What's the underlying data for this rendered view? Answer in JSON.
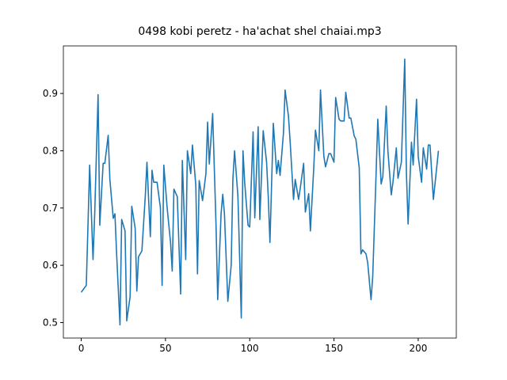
{
  "chart_data": {
    "type": "line",
    "title": "0498 kobi peretz - ha'achat shel chaiai.mp3",
    "color": "#1f77b4",
    "x": [
      0,
      3,
      5,
      7,
      8,
      10,
      11,
      13,
      14,
      16,
      17,
      19,
      20,
      21,
      23,
      24,
      26,
      27,
      29,
      30,
      32,
      33,
      34,
      36,
      38,
      39,
      41,
      42,
      43,
      45,
      47,
      48,
      49,
      51,
      53,
      54,
      55,
      57,
      59,
      60,
      62,
      63,
      65,
      66,
      68,
      69,
      70,
      72,
      74,
      75,
      76,
      78,
      80,
      81,
      83,
      84,
      85,
      87,
      89,
      90,
      91,
      93,
      95,
      96,
      97,
      99,
      100,
      102,
      103,
      105,
      106,
      108,
      110,
      111,
      112,
      114,
      116,
      117,
      118,
      120,
      121,
      123,
      124,
      126,
      127,
      129,
      130,
      132,
      133,
      135,
      136,
      138,
      139,
      141,
      142,
      144,
      145,
      147,
      148,
      150,
      151,
      153,
      154,
      156,
      157,
      159,
      160,
      162,
      163,
      165,
      166,
      167,
      169,
      170,
      172,
      173,
      175,
      176,
      178,
      179,
      181,
      182,
      184,
      185,
      187,
      188,
      190,
      192,
      193,
      194,
      196,
      197,
      199,
      200,
      202,
      203,
      205,
      206,
      207,
      209,
      212
    ],
    "values": [
      0.553,
      0.565,
      0.775,
      0.61,
      0.69,
      0.898,
      0.67,
      0.778,
      0.778,
      0.827,
      0.75,
      0.682,
      0.69,
      0.62,
      0.496,
      0.68,
      0.66,
      0.503,
      0.545,
      0.703,
      0.665,
      0.555,
      0.615,
      0.625,
      0.72,
      0.78,
      0.65,
      0.766,
      0.745,
      0.745,
      0.7,
      0.565,
      0.775,
      0.7,
      0.64,
      0.59,
      0.733,
      0.72,
      0.55,
      0.783,
      0.61,
      0.8,
      0.76,
      0.81,
      0.74,
      0.585,
      0.748,
      0.713,
      0.76,
      0.85,
      0.777,
      0.865,
      0.67,
      0.54,
      0.69,
      0.724,
      0.69,
      0.537,
      0.6,
      0.75,
      0.8,
      0.72,
      0.508,
      0.8,
      0.745,
      0.67,
      0.667,
      0.833,
      0.683,
      0.842,
      0.68,
      0.835,
      0.78,
      0.72,
      0.64,
      0.848,
      0.76,
      0.783,
      0.757,
      0.83,
      0.906,
      0.86,
      0.815,
      0.715,
      0.75,
      0.715,
      0.735,
      0.778,
      0.693,
      0.725,
      0.66,
      0.77,
      0.836,
      0.8,
      0.906,
      0.79,
      0.772,
      0.795,
      0.795,
      0.78,
      0.893,
      0.855,
      0.852,
      0.852,
      0.902,
      0.857,
      0.857,
      0.826,
      0.82,
      0.77,
      0.62,
      0.627,
      0.62,
      0.605,
      0.54,
      0.58,
      0.76,
      0.855,
      0.742,
      0.755,
      0.878,
      0.8,
      0.723,
      0.745,
      0.805,
      0.752,
      0.78,
      0.96,
      0.76,
      0.672,
      0.815,
      0.775,
      0.89,
      0.79,
      0.745,
      0.805,
      0.768,
      0.81,
      0.81,
      0.715,
      0.8
    ],
    "xlim": [
      -10.6,
      222.6
    ],
    "ylim": [
      0.473,
      0.983
    ],
    "xticks": [
      0,
      50,
      100,
      150,
      200
    ],
    "yticks": [
      0.5,
      0.6,
      0.7,
      0.8,
      0.9
    ]
  }
}
